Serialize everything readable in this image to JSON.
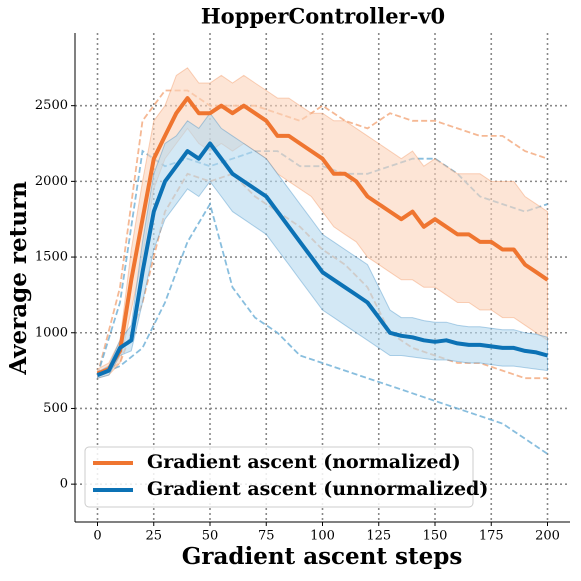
{
  "chart_data": {
    "type": "line",
    "title": "HopperController-v0",
    "x_label": "Gradient ascent steps",
    "y_label": "Average return",
    "x": [
      0,
      5,
      10,
      15,
      20,
      25,
      30,
      35,
      40,
      45,
      50,
      55,
      60,
      65,
      70,
      75,
      80,
      85,
      90,
      95,
      100,
      105,
      110,
      115,
      120,
      125,
      130,
      135,
      140,
      145,
      150,
      155,
      160,
      165,
      170,
      175,
      180,
      185,
      190,
      195,
      200
    ],
    "xlim": [
      -10,
      210
    ],
    "ylim": [
      -250,
      2980
    ],
    "xticks": [
      0,
      25,
      50,
      75,
      100,
      125,
      150,
      175,
      200
    ],
    "yticks": [
      0,
      500,
      1000,
      1500,
      2000,
      2500
    ],
    "grid": true,
    "legend": "lower left",
    "series": [
      {
        "name": "Gradient ascent (normalized)",
        "color": "#ef7530",
        "band_color": "#fbd3bb",
        "values": [
          730,
          760,
          880,
          1350,
          1750,
          2150,
          2300,
          2450,
          2550,
          2450,
          2450,
          2500,
          2450,
          2500,
          2450,
          2400,
          2300,
          2300,
          2250,
          2200,
          2150,
          2050,
          2050,
          2000,
          1900,
          1850,
          1800,
          1750,
          1800,
          1700,
          1750,
          1700,
          1650,
          1650,
          1600,
          1600,
          1550,
          1550,
          1450,
          1400,
          1350
        ],
        "lower": [
          700,
          720,
          800,
          1150,
          1500,
          1950,
          2150,
          2250,
          2350,
          2250,
          2200,
          2250,
          2200,
          2250,
          2200,
          2150,
          2050,
          2000,
          1950,
          1900,
          1800,
          1700,
          1650,
          1600,
          1500,
          1450,
          1400,
          1350,
          1350,
          1300,
          1300,
          1250,
          1200,
          1200,
          1150,
          1150,
          1100,
          1100,
          1050,
          1000,
          950
        ],
        "upper": [
          760,
          800,
          950,
          1550,
          2000,
          2400,
          2500,
          2700,
          2750,
          2650,
          2650,
          2700,
          2650,
          2700,
          2650,
          2600,
          2550,
          2550,
          2500,
          2450,
          2450,
          2400,
          2400,
          2350,
          2300,
          2250,
          2200,
          2150,
          2200,
          2100,
          2150,
          2100,
          2050,
          2050,
          2050,
          2000,
          2000,
          2000,
          1900,
          1850,
          1800
        ]
      },
      {
        "name": "Gradient ascent (unnormalized)",
        "color": "#0c72b5",
        "band_color": "#b5d8ee",
        "values": [
          720,
          750,
          900,
          950,
          1400,
          1800,
          2000,
          2100,
          2200,
          2150,
          2250,
          2150,
          2050,
          2000,
          1950,
          1900,
          1800,
          1700,
          1600,
          1500,
          1400,
          1350,
          1300,
          1250,
          1200,
          1100,
          1000,
          980,
          970,
          950,
          940,
          950,
          930,
          920,
          920,
          910,
          900,
          900,
          880,
          870,
          850
        ],
        "lower": [
          700,
          720,
          850,
          880,
          1200,
          1550,
          1750,
          1850,
          1950,
          1900,
          2000,
          1900,
          1800,
          1750,
          1700,
          1650,
          1550,
          1450,
          1350,
          1250,
          1150,
          1100,
          1050,
          1000,
          950,
          900,
          850,
          850,
          840,
          830,
          820,
          820,
          810,
          800,
          800,
          790,
          780,
          780,
          770,
          760,
          750
        ],
        "upper": [
          740,
          780,
          950,
          1050,
          1600,
          2050,
          2250,
          2300,
          2400,
          2350,
          2450,
          2350,
          2300,
          2250,
          2200,
          2150,
          2050,
          1950,
          1850,
          1750,
          1650,
          1600,
          1550,
          1500,
          1450,
          1300,
          1150,
          1100,
          1100,
          1080,
          1070,
          1070,
          1050,
          1040,
          1040,
          1030,
          1020,
          1020,
          1000,
          990,
          970
        ]
      },
      {
        "color": "#f2a679",
        "style": "dashed",
        "x": [
          0,
          10,
          20,
          30,
          40,
          50,
          60,
          70,
          80,
          90,
          100,
          110,
          120,
          130,
          140,
          150,
          160,
          170,
          180,
          190,
          200
        ],
        "values": [
          720,
          1300,
          2400,
          2600,
          2600,
          2500,
          2500,
          2500,
          2450,
          2400,
          2500,
          2400,
          2350,
          2450,
          2400,
          2400,
          2350,
          2300,
          2300,
          2200,
          2150
        ]
      },
      {
        "color": "#f2a679",
        "style": "dashed",
        "x": [
          0,
          10,
          20,
          30,
          40,
          50,
          60,
          70,
          80,
          90,
          100,
          110,
          120,
          130,
          140,
          150,
          160,
          170,
          180,
          190,
          200
        ],
        "values": [
          720,
          800,
          1200,
          1800,
          2050,
          2000,
          2050,
          1900,
          1800,
          1700,
          1550,
          1450,
          1300,
          1000,
          900,
          850,
          800,
          800,
          750,
          700,
          700
        ]
      },
      {
        "color": "#6aaed6",
        "style": "dashed",
        "x": [
          0,
          10,
          20,
          30,
          40,
          50,
          60,
          70,
          80,
          90,
          100,
          110,
          120,
          130,
          140,
          150,
          160,
          170,
          180,
          190,
          200
        ],
        "values": [
          720,
          1200,
          2200,
          2100,
          2150,
          2100,
          2150,
          2200,
          2200,
          2100,
          2100,
          2050,
          2050,
          2100,
          2150,
          2150,
          2050,
          1900,
          1850,
          1800,
          1850
        ]
      },
      {
        "color": "#6aaed6",
        "style": "dashed",
        "x": [
          0,
          10,
          20,
          30,
          40,
          50,
          60,
          70,
          80,
          90,
          100,
          110,
          120,
          130,
          140,
          150,
          160,
          170,
          180,
          190,
          200
        ],
        "values": [
          720,
          780,
          900,
          1200,
          1600,
          1850,
          1300,
          1100,
          1000,
          850,
          800,
          750,
          700,
          650,
          600,
          550,
          500,
          450,
          400,
          300,
          200
        ]
      }
    ]
  }
}
